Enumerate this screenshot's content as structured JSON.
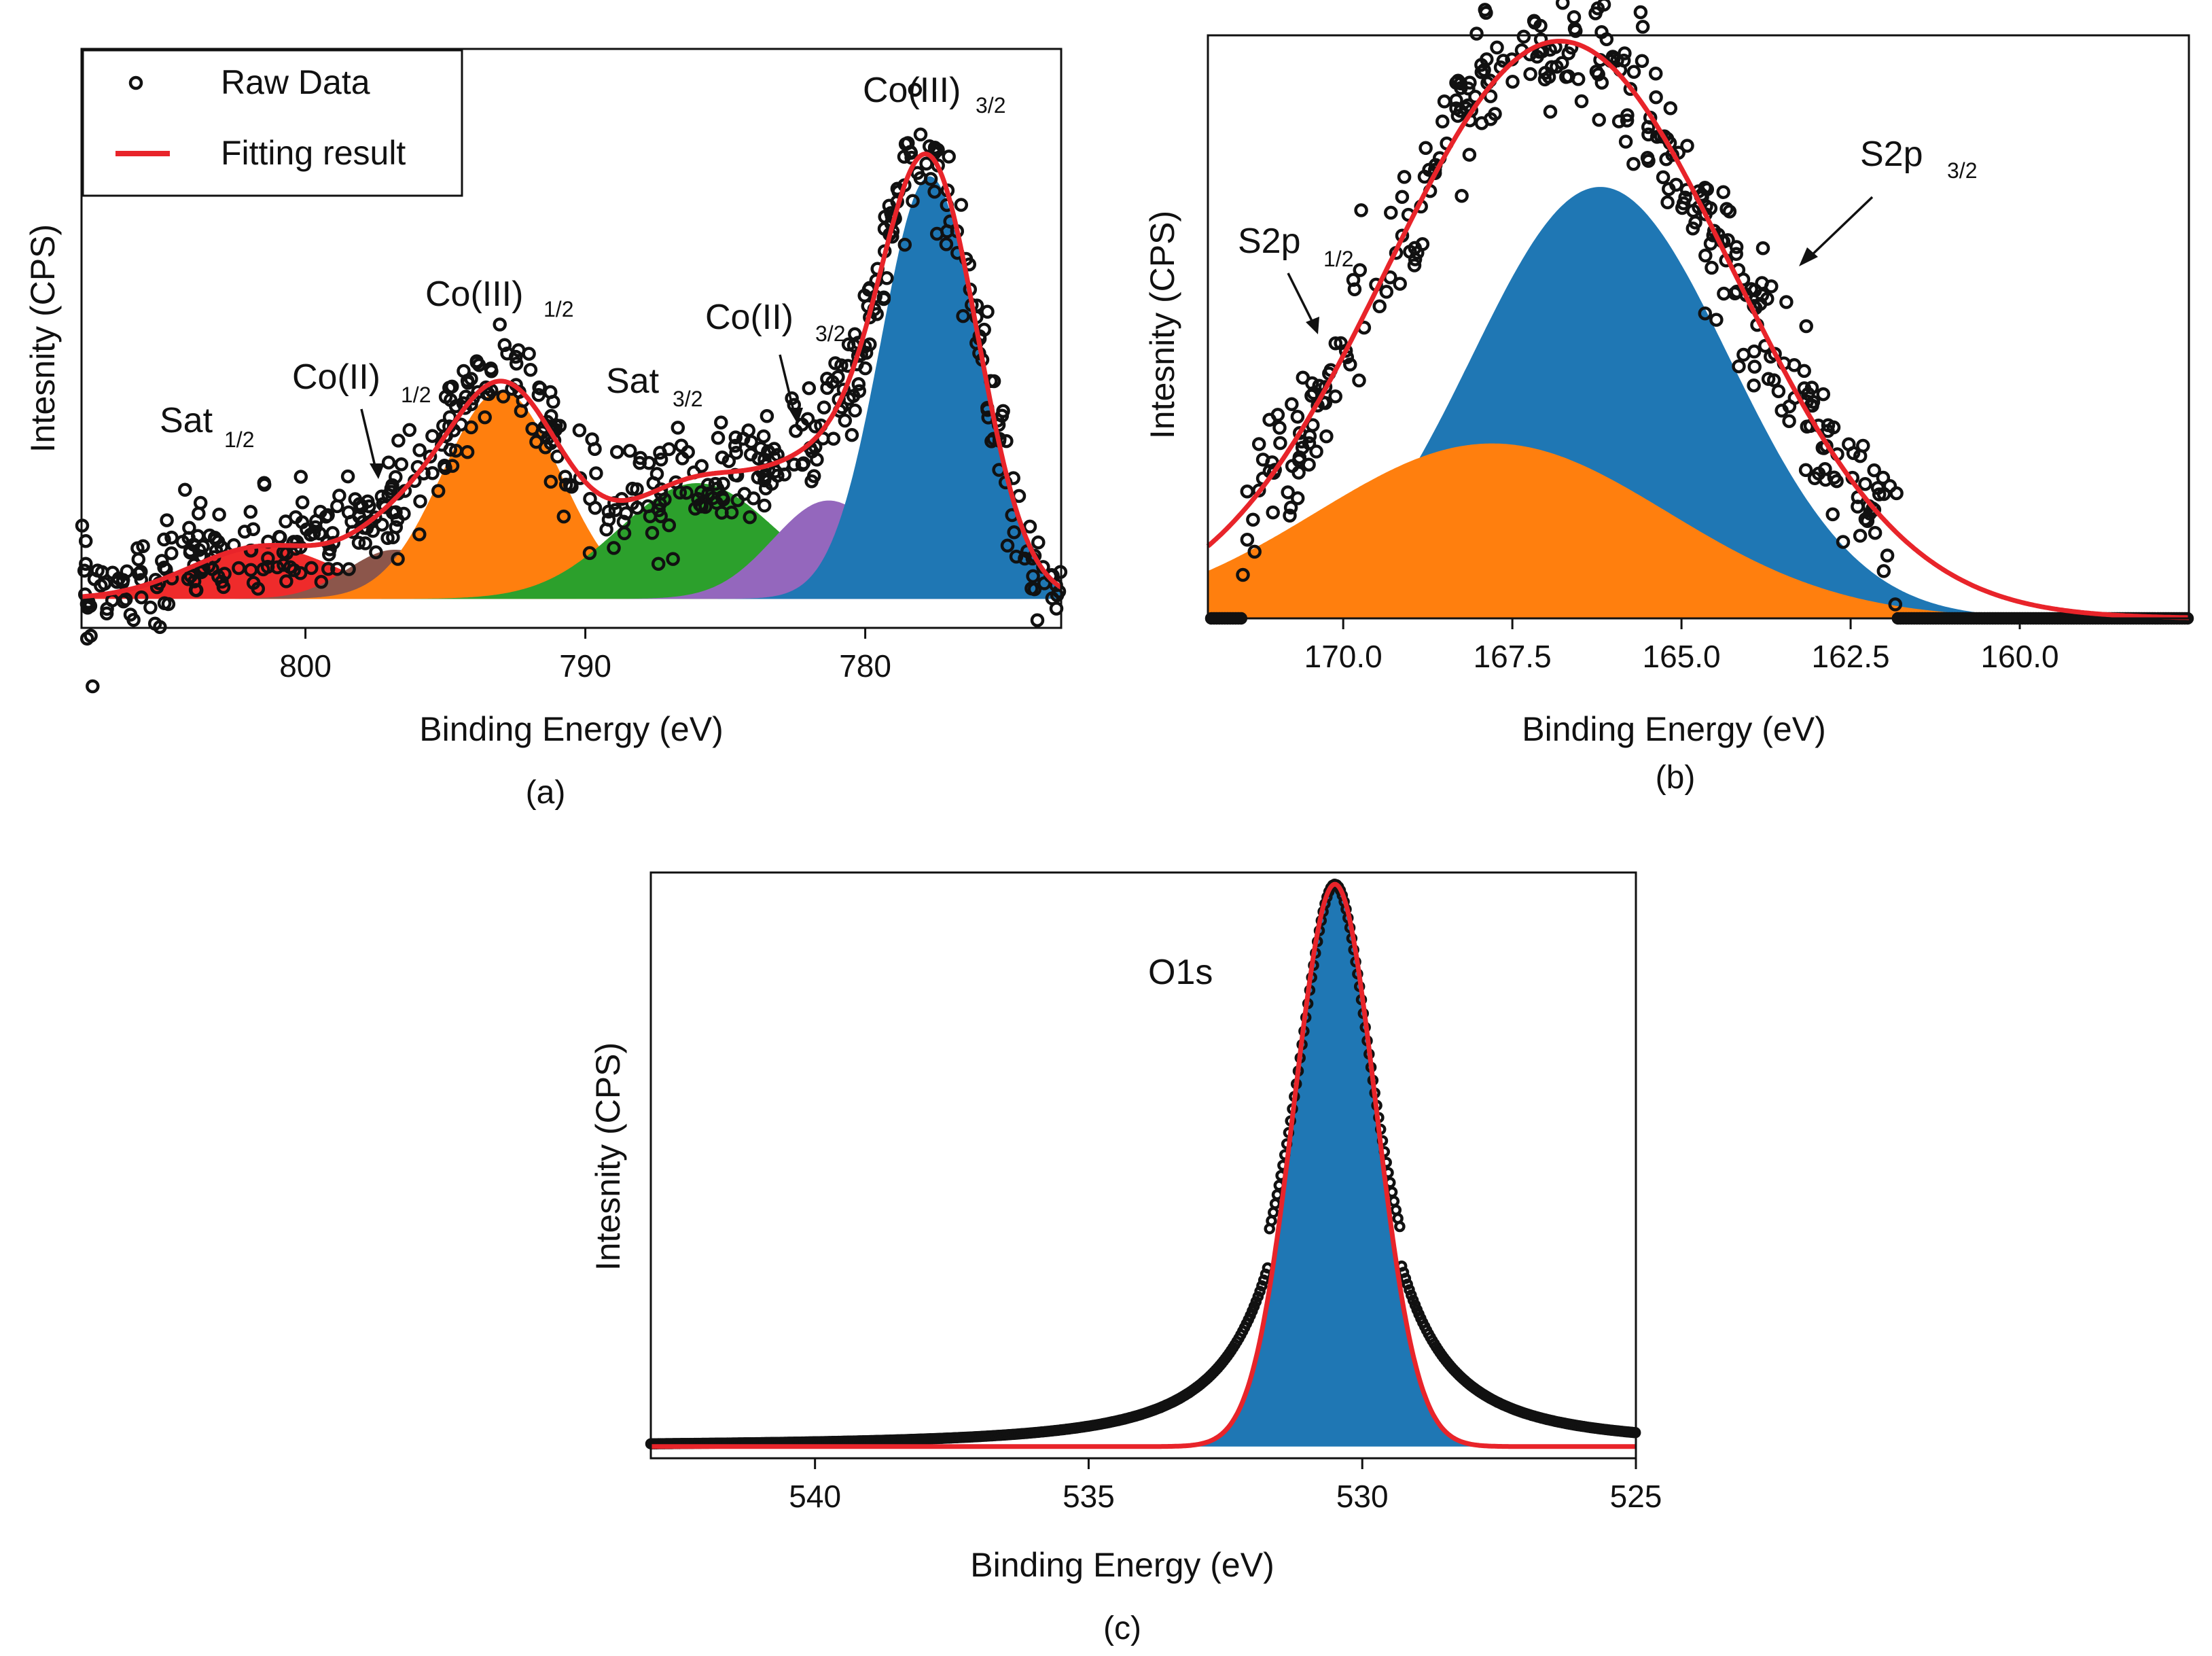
{
  "chart_data": [
    {
      "panel": "(a)",
      "type": "scatter",
      "title": "",
      "xlabel": "Binding Energy (eV)",
      "ylabel": "Intesnity (CPS)",
      "xlim": [
        808,
        773
      ],
      "ylim": [
        0,
        1.0
      ],
      "x_inverted": true,
      "xticks": [
        800,
        790,
        780
      ],
      "xtick_labels": [
        "800",
        "790",
        "780"
      ],
      "legend": {
        "position": "top-left",
        "entries": [
          {
            "label": "Raw Data",
            "marker": "open-circle",
            "color": "#111111"
          },
          {
            "label": "Fitting result",
            "marker": "line",
            "color": "#e8242a"
          }
        ]
      },
      "baseline": 0.05,
      "components": [
        {
          "name": "Sat 1/2",
          "label": "Sat",
          "sub": "1/2",
          "center": 801.5,
          "height": 0.09,
          "sigma": 2.6,
          "color": "#ef2b2b"
        },
        {
          "name": "Co(II) 1/2",
          "label": "Co(II)",
          "sub": "1/2",
          "center": 796.8,
          "height": 0.085,
          "sigma": 1.7,
          "color": "#8c564b"
        },
        {
          "name": "Co(III) 1/2",
          "label": "Co(III)",
          "sub": "1/2",
          "center": 793.0,
          "height": 0.36,
          "sigma": 2.1,
          "color": "#ff7f0e"
        },
        {
          "name": "Sat 3/2",
          "label": "Sat",
          "sub": "3/2",
          "center": 786.0,
          "height": 0.2,
          "sigma": 2.8,
          "color": "#2ca02c"
        },
        {
          "name": "Co(II) 3/2",
          "label": "Co(II)",
          "sub": "3/2",
          "center": 781.3,
          "height": 0.17,
          "sigma": 2.0,
          "color": "#9467bd"
        },
        {
          "name": "Co(III) 3/2",
          "label": "Co(III)",
          "sub": "3/2",
          "center": 777.7,
          "height": 0.73,
          "sigma": 1.75,
          "color": "#1f77b4"
        }
      ],
      "noise": 0.045,
      "n_points": 560,
      "annotations": [
        {
          "text": "Sat",
          "sub": "1/2"
        },
        {
          "text": "Co(II)",
          "sub": "1/2"
        },
        {
          "text": "Co(III)",
          "sub": "1/2"
        },
        {
          "text": "Sat",
          "sub": "3/2"
        },
        {
          "text": "Co(II)",
          "sub": "3/2"
        },
        {
          "text": "Co(III)",
          "sub": "3/2"
        }
      ]
    },
    {
      "panel": "(b)",
      "type": "scatter",
      "title": "",
      "xlabel": "Binding Energy (eV)",
      "ylabel": "Intesnity (CPS)",
      "xlim": [
        172.0,
        157.5
      ],
      "ylim": [
        0,
        1.0
      ],
      "x_inverted": true,
      "xticks": [
        170.0,
        167.5,
        165.0,
        162.5,
        160.0
      ],
      "xtick_labels": [
        "170.0",
        "167.5",
        "165.0",
        "162.5",
        "160.0"
      ],
      "baseline": 0.0,
      "components": [
        {
          "name": "S2p 3/2",
          "center": 166.2,
          "height": 0.74,
          "sigma": 1.9,
          "color": "#1f77b4"
        },
        {
          "name": "S2p 1/2",
          "center": 167.8,
          "height": 0.3,
          "sigma": 2.6,
          "color": "#ff7f0e"
        }
      ],
      "fit": {
        "center": 166.8,
        "height": 0.99,
        "sigma": 2.55
      },
      "noise": 0.06,
      "data_range": [
        171.5,
        161.8
      ],
      "annotations": [
        {
          "text": "S2p",
          "sub": "1/2"
        },
        {
          "text": "S2p",
          "sub": "3/2"
        }
      ]
    },
    {
      "panel": "(c)",
      "type": "scatter",
      "title": "",
      "xlabel": "Binding Energy (eV)",
      "ylabel": "Intesnity (CPS)",
      "xlim": [
        543,
        525
      ],
      "ylim": [
        0,
        1.0
      ],
      "x_inverted": true,
      "xticks": [
        540,
        535,
        530,
        525
      ],
      "xtick_labels": [
        "540",
        "535",
        "530",
        "525"
      ],
      "baseline": 0.02,
      "components": [
        {
          "name": "O1s",
          "center": 530.5,
          "height": 0.96,
          "sigma": 0.75,
          "color": "#1f77b4"
        }
      ],
      "tail_height": 0.05,
      "annotations": [
        {
          "text": "O1s",
          "sub": ""
        }
      ]
    }
  ]
}
